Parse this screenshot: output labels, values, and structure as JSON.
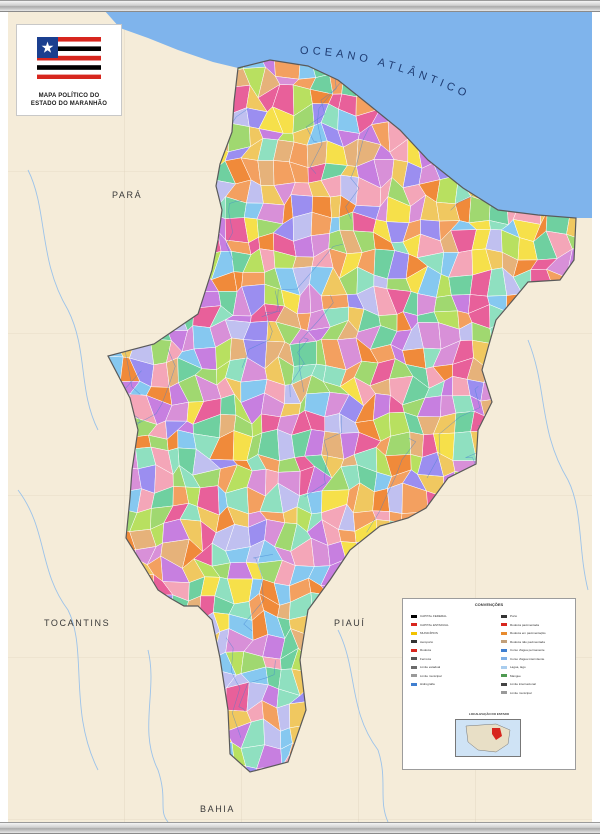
{
  "title": {
    "line1": "MAPA POLÍTICO DO",
    "line2": "ESTADO DO MARANHÃO"
  },
  "labels": {
    "ocean": "OCEANO ATLÂNTICO",
    "neighbors": [
      {
        "key": "para",
        "text": "PARÁ"
      },
      {
        "key": "tocantins",
        "text": "TOCANTINS"
      },
      {
        "key": "piaui",
        "text": "PIAUÍ"
      },
      {
        "key": "bahia",
        "text": "BAHIA"
      }
    ]
  },
  "legend": {
    "title": "CONVENÇÕES",
    "left_items": [
      {
        "label": "CAPITAL FEDERAL",
        "color": "#000000"
      },
      {
        "label": "CAPITAL ESTADUAL",
        "color": "#d7261e"
      },
      {
        "label": "MUNICÍPIOS",
        "color": "#f2c200"
      },
      {
        "label": "Aeroporto",
        "color": "#333333"
      },
      {
        "label": "Rodovia",
        "color": "#d7261e"
      },
      {
        "label": "Ferrovia",
        "color": "#555555"
      },
      {
        "label": "Limite estadual",
        "color": "#6b6b6b"
      },
      {
        "label": "Limite municipal",
        "color": "#9a9a9a"
      },
      {
        "label": "Hidrografia",
        "color": "#3f7fd0"
      }
    ],
    "right_items": [
      {
        "label": "Porto",
        "color": "#333333"
      },
      {
        "label": "Rodovia pavimentada",
        "color": "#d7261e"
      },
      {
        "label": "Rodovia em pavimentação",
        "color": "#e88b2e"
      },
      {
        "label": "Rodovia não pavimentada",
        "color": "#c2a07a"
      },
      {
        "label": "Curso d'água permanente",
        "color": "#3f7fd0"
      },
      {
        "label": "Curso d'água intermitente",
        "color": "#7fb0e6"
      },
      {
        "label": "Lagoa, lago",
        "color": "#a9cdee"
      },
      {
        "label": "Mangue",
        "color": "#4f9a52"
      },
      {
        "label": "Limite internacional",
        "color": "#444444"
      },
      {
        "label": "Limite municipal",
        "color": "#9a9a9a"
      }
    ],
    "location_title": "LOCALIZAÇÃO DO ESTADO"
  },
  "colors": {
    "ocean": "#7fb4ec",
    "land": "#f5ecd9",
    "state_border": "#5a5a5a",
    "flag_red": "#d7261e",
    "flag_blue": "#1b3f8f"
  }
}
